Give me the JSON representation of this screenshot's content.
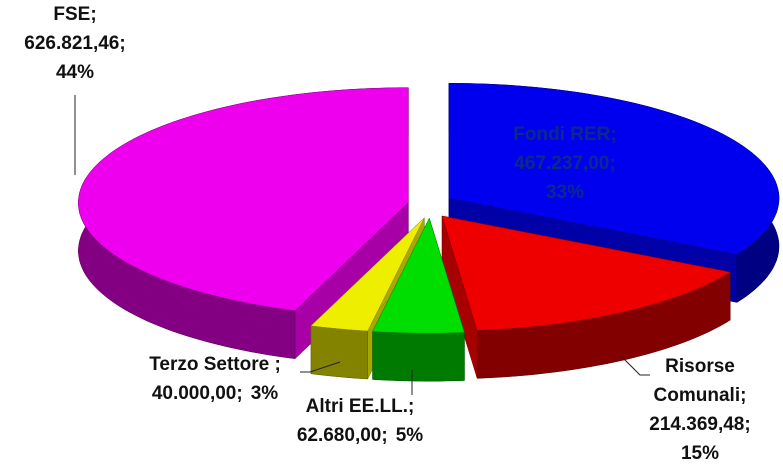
{
  "chart_data": {
    "type": "pie3d",
    "categories": [
      "Fondi RER",
      "Risorse Comunali",
      "Altri EE.LL.",
      "Terzo Settore ",
      "FSE"
    ],
    "values": [
      467237.0,
      214369.48,
      62680.0,
      40000.0,
      626821.46
    ],
    "value_labels": [
      "467.237,00",
      "214.369,48",
      "62.680,00",
      "40.000,00",
      "626.821,46"
    ],
    "percents": [
      33,
      15,
      5,
      3,
      44
    ],
    "percent_labels": [
      "33%",
      "15%",
      "5%",
      "3%",
      "44%"
    ],
    "separator": ";",
    "colors": [
      "#0000ee",
      "#ee0000",
      "#00dd00",
      "#eeee00",
      "#ee00ee"
    ]
  }
}
